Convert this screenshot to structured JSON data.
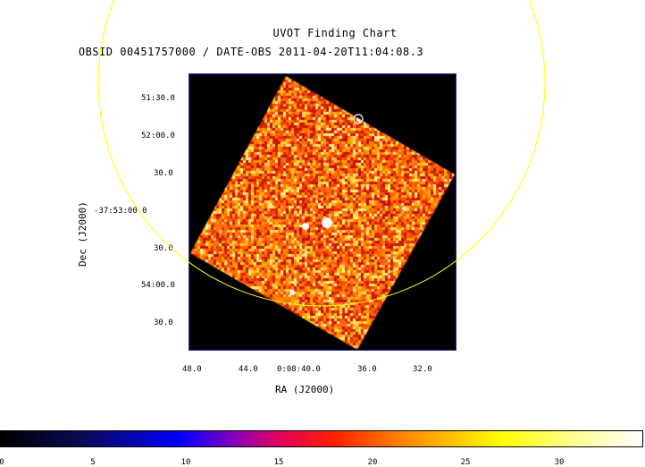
{
  "title": "UVOT Finding Chart",
  "subtitle": "OBSID 00451757000 / DATE-OBS 2011-04-20T11:04:08.3",
  "dec_axis": {
    "label": "Dec (J2000)",
    "ticks": [
      "51:30.0",
      "52:00.0",
      "30.0",
      "-37:53:00.0",
      "30.0",
      "54:00.0",
      "30.0"
    ]
  },
  "ra_axis": {
    "label": "RA (J2000)",
    "ticks": [
      "48.0",
      "44.0",
      "0:08:40.0",
      "36.0",
      "32.0"
    ]
  },
  "colorbar": {
    "ticks": [
      "0",
      "5",
      "10",
      "15",
      "20",
      "25",
      "30"
    ],
    "range": [
      0,
      34
    ]
  },
  "colors": {
    "circle": "#ffff00",
    "frame_border": "#3030a0",
    "background": "#000000"
  }
}
